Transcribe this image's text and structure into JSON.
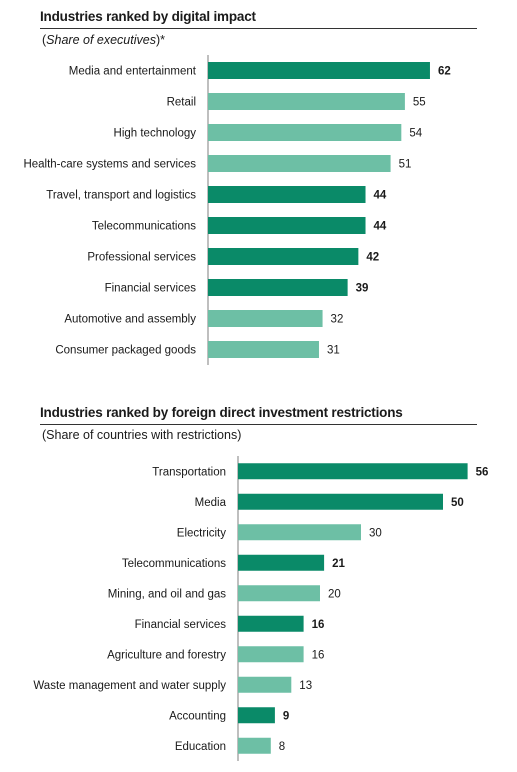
{
  "colors": {
    "dark": "#0a8a68",
    "light": "#6dbfa5",
    "axis": "#7f7f7f"
  },
  "chart_data": [
    {
      "type": "bar",
      "orientation": "horizontal",
      "title": "Industries ranked by digital impact",
      "subtitle_main": "Share of executives",
      "subtitle_suffix": "*",
      "categories": [
        "Media and entertainment",
        "Retail",
        "High technology",
        "Health-care systems and services",
        "Travel, transport and logistics",
        "Telecommunications",
        "Professional services",
        "Financial services",
        "Automotive and assembly",
        "Consumer packaged goods"
      ],
      "values": [
        62,
        55,
        54,
        51,
        44,
        44,
        42,
        39,
        32,
        31
      ],
      "highlight": [
        true,
        false,
        false,
        false,
        true,
        true,
        true,
        true,
        false,
        false
      ],
      "value_labels": [
        "62",
        "55",
        "54",
        "51",
        "44",
        "44",
        "42",
        "39",
        "32",
        "31"
      ]
    },
    {
      "type": "bar",
      "orientation": "horizontal",
      "title": "Industries ranked by foreign direct investment restrictions",
      "subtitle": "(Share of countries with restrictions)",
      "categories": [
        "Transportation",
        "Media",
        "Electricity",
        "Telecommunications",
        "Mining, and oil and gas",
        "Financial services",
        "Agriculture and forestry",
        "Waste management and water supply",
        "Accounting",
        "Education"
      ],
      "values": [
        56,
        50,
        30,
        21,
        20,
        16,
        16,
        13,
        9,
        8
      ],
      "highlight": [
        true,
        true,
        false,
        true,
        false,
        true,
        false,
        false,
        true,
        false
      ],
      "value_labels": [
        "56",
        "50",
        "30",
        "21",
        "20",
        "16",
        "16",
        "13",
        "9",
        "8"
      ]
    }
  ]
}
